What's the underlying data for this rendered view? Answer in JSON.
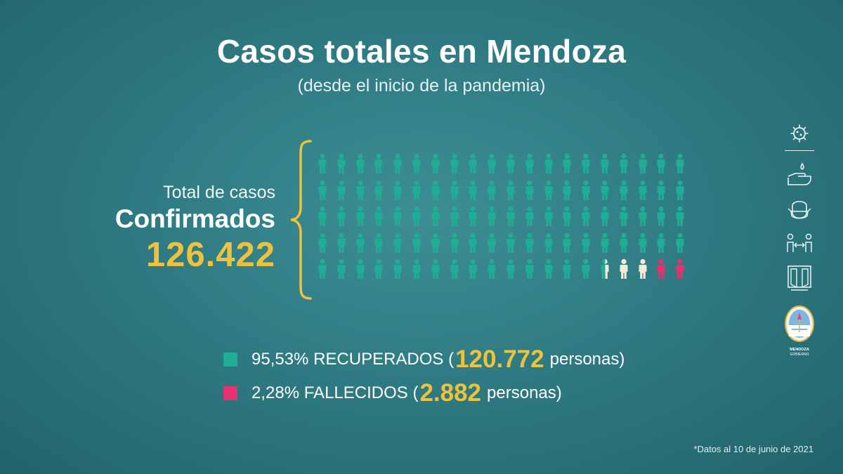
{
  "title": "Casos totales en Mendoza",
  "subtitle": "(desde el inicio de la pandemia)",
  "total_label": "Total de casos",
  "confirmed_label": "Confirmados",
  "confirmed_number": "126.422",
  "pictogram": {
    "rows": 5,
    "columns": 20,
    "total_icons": 100,
    "recovered_icons": 95,
    "active_icons": 3,
    "deceased_icons": 2,
    "partial_recovered_fraction": 0.53,
    "colors": {
      "recovered": "#1fae95",
      "active": "#f3ecd9",
      "deceased": "#e5326e"
    }
  },
  "legend": [
    {
      "percent_text": "95,53% RECUPERADOS (",
      "number": "120.772",
      "suffix": " personas)",
      "color": "#1fae95"
    },
    {
      "percent_text": "2,28% FALLECIDOS (",
      "number": "2.882",
      "suffix": " personas)",
      "color": "#e5326e"
    }
  ],
  "footnote": "*Datos al 10 de junio de 2021",
  "side_icons": [
    "virus-icon",
    "handwash-icon",
    "mask-icon",
    "distance-icon",
    "window-ventilation-icon",
    "mendoza-shield-logo"
  ],
  "logo_text": [
    "MENDOZA",
    "GOBIERNO"
  ]
}
